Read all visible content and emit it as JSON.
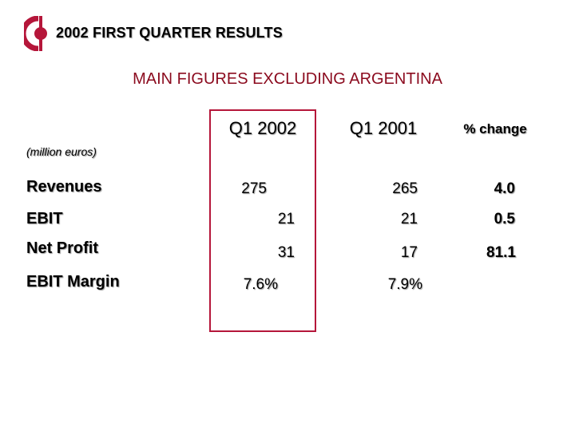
{
  "header": {
    "title": "2002 FIRST QUARTER RESULTS",
    "logo_icon": "company-logo-icon"
  },
  "subtitle": "MAIN FIGURES EXCLUDING ARGENTINA",
  "table": {
    "unit": "(million euros)",
    "columns": [
      "Q1 2002",
      "Q1 2001",
      "% change"
    ],
    "rows": [
      {
        "label": "Revenues",
        "q1_2002": "275",
        "q1_2001": "265",
        "change": "4.0"
      },
      {
        "label": "EBIT",
        "q1_2002": "21",
        "q1_2001": "21",
        "change": "0.5"
      },
      {
        "label": "Net Profit",
        "q1_2002": "31",
        "q1_2001": "17",
        "change": "81.1"
      },
      {
        "label": "EBIT Margin",
        "q1_2002": "7.6%",
        "q1_2001": "7.9%",
        "change": ""
      }
    ]
  },
  "colors": {
    "brand_red": "#b5163a",
    "subtitle_red": "#8b0a1e"
  }
}
